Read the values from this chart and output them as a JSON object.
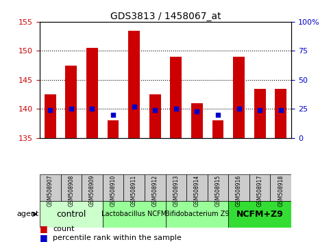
{
  "title": "GDS3813 / 1458067_at",
  "samples": [
    "GSM508907",
    "GSM508908",
    "GSM508909",
    "GSM508910",
    "GSM508911",
    "GSM508912",
    "GSM508913",
    "GSM508914",
    "GSM508915",
    "GSM508916",
    "GSM508917",
    "GSM508918"
  ],
  "counts": [
    142.5,
    147.5,
    150.5,
    138.0,
    153.5,
    142.5,
    149.0,
    141.0,
    138.0,
    149.0,
    143.5,
    143.5
  ],
  "percentiles": [
    24,
    25,
    25,
    20,
    27,
    24,
    25,
    23,
    20,
    25,
    24,
    24
  ],
  "ylim_left": [
    135,
    155
  ],
  "ylim_right": [
    0,
    100
  ],
  "yticks_left": [
    135,
    140,
    145,
    150,
    155
  ],
  "yticks_right": [
    0,
    25,
    50,
    75,
    100
  ],
  "groups": [
    {
      "label": "control",
      "start": 0,
      "end": 3,
      "color": "#ccffcc",
      "fontsize": 9,
      "bold": false
    },
    {
      "label": "Lactobacillus NCFM",
      "start": 3,
      "end": 6,
      "color": "#99ff99",
      "fontsize": 7,
      "bold": false
    },
    {
      "label": "Bifidobacterium Z9",
      "start": 6,
      "end": 9,
      "color": "#99ff99",
      "fontsize": 7,
      "bold": false
    },
    {
      "label": "NCFM+Z9",
      "start": 9,
      "end": 12,
      "color": "#33dd33",
      "fontsize": 9,
      "bold": true
    }
  ],
  "bar_color": "#cc0000",
  "dot_color": "#0000cc",
  "tick_color_left": "#cc0000",
  "tick_color_right": "#0000cc",
  "sample_box_color": "#cccccc",
  "grid_lines": [
    140,
    145,
    150
  ]
}
